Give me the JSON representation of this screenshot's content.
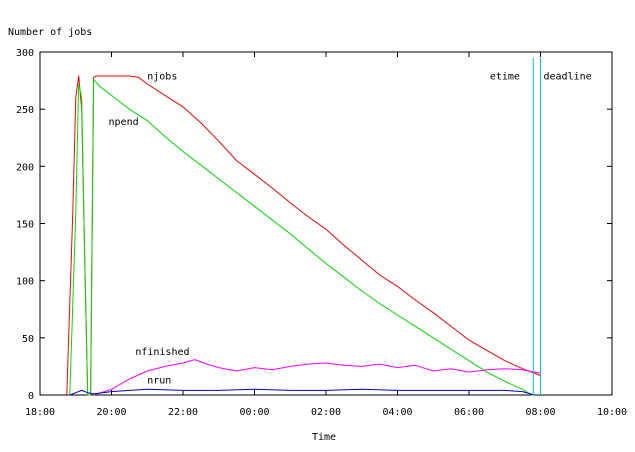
{
  "chart_data": {
    "type": "line",
    "ylabel": "Number of jobs",
    "xlabel": "Time",
    "ylim": [
      0,
      300
    ],
    "xlim_hours": [
      18,
      34
    ],
    "x_ticks": [
      "18:00",
      "20:00",
      "22:00",
      "00:00",
      "02:00",
      "04:00",
      "06:00",
      "08:00",
      "10:00"
    ],
    "y_ticks": [
      0,
      50,
      100,
      150,
      200,
      250,
      300
    ],
    "grid": false,
    "series": [
      {
        "name": "njobs",
        "color": "#ff0000",
        "x": [
          "18:45",
          "18:55",
          "19:00",
          "19:05",
          "19:10",
          "19:15",
          "19:20",
          "19:25",
          "19:30",
          "19:35",
          "20:00",
          "20:30",
          "20:45",
          "21:00",
          "21:30",
          "22:00",
          "22:30",
          "23:00",
          "23:30",
          "00:00",
          "00:30",
          "01:00",
          "01:30",
          "02:00",
          "02:30",
          "03:00",
          "03:30",
          "04:00",
          "04:30",
          "05:00",
          "05:30",
          "06:00",
          "06:30",
          "07:00",
          "07:30",
          "08:00"
        ],
        "values": [
          0,
          160,
          260,
          279,
          250,
          120,
          0,
          0,
          278,
          279,
          279,
          279,
          278,
          272,
          262,
          252,
          238,
          222,
          205,
          193,
          181,
          168,
          156,
          145,
          131,
          118,
          105,
          95,
          83,
          72,
          60,
          48,
          39,
          30,
          23,
          17
        ]
      },
      {
        "name": "npend",
        "color": "#00dd00",
        "x": [
          "18:50",
          "19:00",
          "19:05",
          "19:10",
          "19:15",
          "19:20",
          "19:25",
          "19:30",
          "19:40",
          "20:00",
          "20:30",
          "21:00",
          "21:30",
          "22:00",
          "22:30",
          "23:00",
          "23:30",
          "00:00",
          "00:30",
          "01:00",
          "01:30",
          "02:00",
          "02:30",
          "03:00",
          "03:30",
          "04:00",
          "04:30",
          "05:00",
          "05:30",
          "06:00",
          "06:30",
          "07:00",
          "07:30",
          "07:45",
          "07:50"
        ],
        "values": [
          0,
          160,
          272,
          260,
          120,
          0,
          0,
          276,
          270,
          262,
          250,
          240,
          226,
          213,
          201,
          189,
          177,
          165,
          153,
          141,
          128,
          115,
          103,
          91,
          80,
          70,
          60,
          50,
          40,
          30,
          20,
          12,
          5,
          0,
          0
        ]
      },
      {
        "name": "nfinished",
        "color": "#ff00ff",
        "x": [
          "19:30",
          "20:00",
          "20:30",
          "21:00",
          "21:30",
          "22:00",
          "22:20",
          "22:40",
          "23:00",
          "23:30",
          "00:00",
          "00:30",
          "01:00",
          "01:30",
          "02:00",
          "02:30",
          "03:00",
          "03:30",
          "04:00",
          "04:30",
          "05:00",
          "05:30",
          "06:00",
          "06:30",
          "07:00",
          "07:30",
          "08:00"
        ],
        "values": [
          0,
          5,
          14,
          21,
          25,
          28,
          31,
          27,
          24,
          21,
          24,
          22,
          25,
          27,
          28,
          26,
          25,
          27,
          24,
          26,
          21,
          23,
          20,
          22,
          23,
          22,
          19
        ]
      },
      {
        "name": "nrun",
        "color": "#0000cc",
        "x": [
          "18:50",
          "19:00",
          "19:10",
          "19:20",
          "19:30",
          "20:00",
          "20:30",
          "21:00",
          "22:00",
          "23:00",
          "00:00",
          "01:00",
          "02:00",
          "03:00",
          "04:00",
          "05:00",
          "06:00",
          "07:00",
          "07:30",
          "07:50"
        ],
        "values": [
          0,
          2,
          4,
          2,
          1,
          3,
          4,
          5,
          4,
          4,
          5,
          4,
          4,
          5,
          4,
          4,
          4,
          4,
          3,
          0
        ]
      }
    ],
    "markers": [
      {
        "name": "etime",
        "x": "07:48",
        "color": "#00cccc"
      },
      {
        "name": "deadline",
        "x": "08:00",
        "color": "#00cccc"
      }
    ],
    "annotations": [
      {
        "text": "njobs",
        "x": "21:00",
        "y": 276
      },
      {
        "text": "npend",
        "x": "19:55",
        "y": 236
      },
      {
        "text": "nfinished",
        "x": "20:40",
        "y": 35
      },
      {
        "text": "nrun",
        "x": "21:00",
        "y": 10
      },
      {
        "text": "etime",
        "x": "06:35",
        "y": 276
      },
      {
        "text": "deadline",
        "x": "08:05",
        "y": 276
      }
    ]
  }
}
